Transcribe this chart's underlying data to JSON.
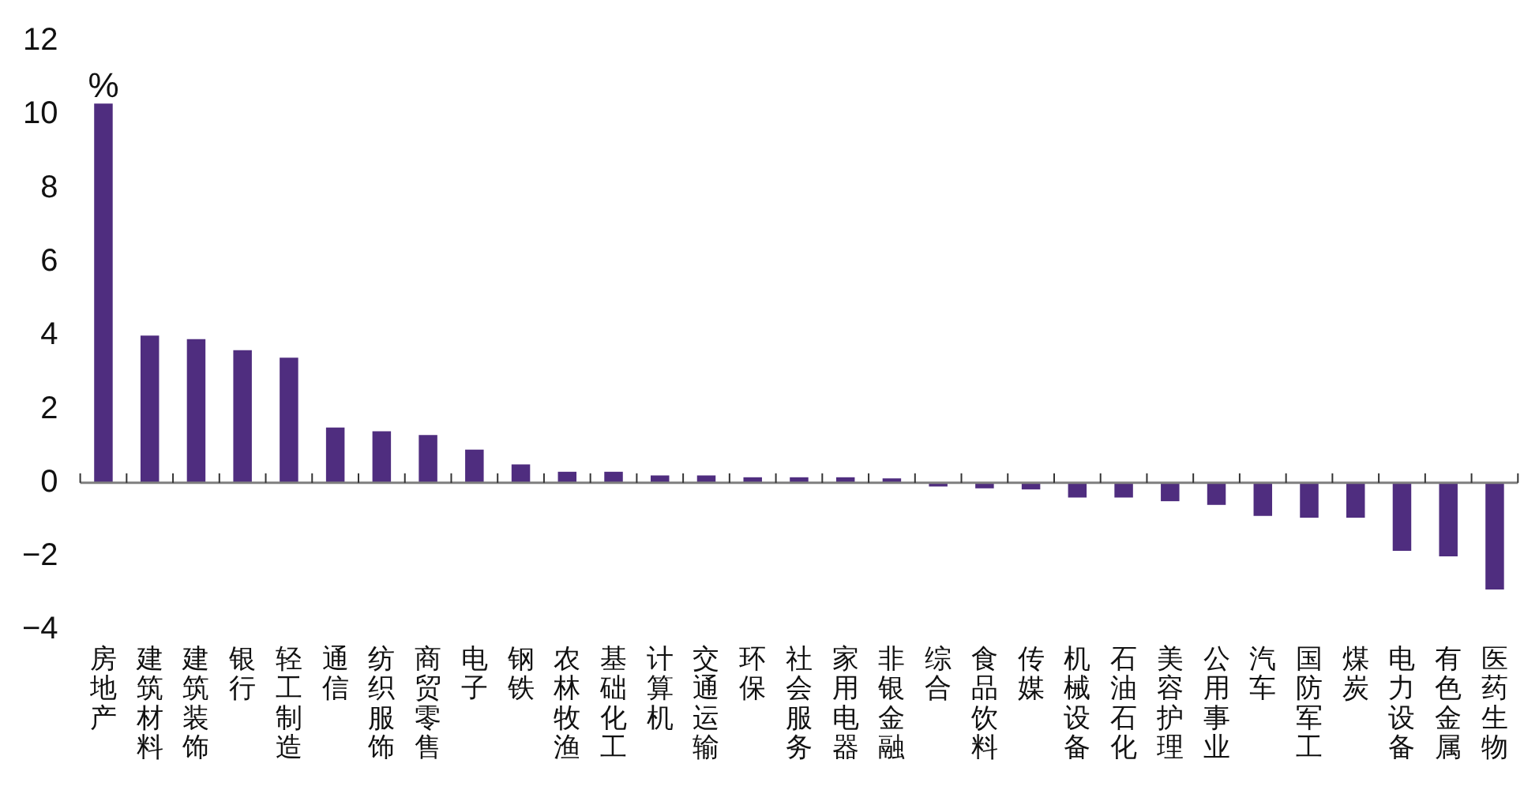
{
  "chart_data": {
    "type": "bar",
    "ylabel": "%",
    "categories": [
      "房地产",
      "建筑材料",
      "建筑装饰",
      "银行",
      "轻工制造",
      "通信",
      "纺织服饰",
      "商贸零售",
      "电子",
      "钢铁",
      "农林牧渔",
      "基础化工",
      "计算机",
      "交通运输",
      "环保",
      "社会服务",
      "家用电器",
      "非银金融",
      "综合",
      "食品饮料",
      "传媒",
      "机械设备",
      "石油石化",
      "美容护理",
      "公用事业",
      "汽车",
      "国防军工",
      "煤炭",
      "电力设备",
      "有色金属",
      "医药生物"
    ],
    "values": [
      10.3,
      4.0,
      3.9,
      3.6,
      3.4,
      1.5,
      1.4,
      1.3,
      0.9,
      0.5,
      0.3,
      0.3,
      0.2,
      0.2,
      0.15,
      0.15,
      0.15,
      0.12,
      -0.1,
      -0.15,
      -0.18,
      -0.4,
      -0.4,
      -0.5,
      -0.6,
      -0.9,
      -0.95,
      -0.95,
      -1.85,
      -2.0,
      -2.9
    ],
    "color": "#4f2d7f",
    "ylim": [
      -4,
      12
    ],
    "yticks": [
      -4,
      -2,
      0,
      2,
      4,
      6,
      8,
      10,
      12
    ],
    "legend": false
  }
}
